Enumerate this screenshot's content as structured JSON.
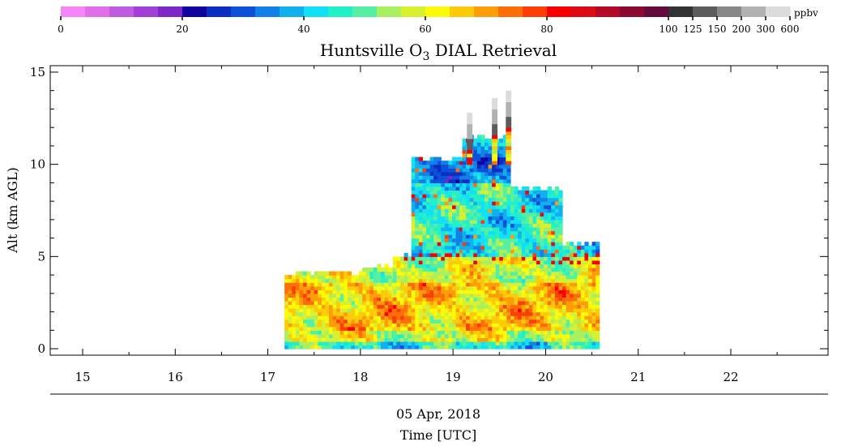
{
  "chart_data": {
    "type": "heatmap",
    "title": "Huntsville O",
    "title_sub": "3",
    "title_rest": " DIAL Retrieval",
    "ylabel": "Alt (km AGL)",
    "xlabel": "Time [UTC]",
    "date_label": "05 Apr, 2018",
    "x_unit": "hour UTC",
    "xlim": [
      14.65,
      23.05
    ],
    "ylim": [
      -0.35,
      15.35
    ],
    "x_ticks": [
      15,
      16,
      17,
      18,
      19,
      20,
      21,
      22
    ],
    "y_ticks": [
      0,
      5,
      10,
      15
    ],
    "grid": false,
    "colorbar": {
      "unit_label": "ppbv",
      "colors": [
        "#f785f7",
        "#e06ee8",
        "#c05adf",
        "#a13fd6",
        "#7d27c8",
        "#0f04a0",
        "#0b2ec3",
        "#0d50da",
        "#1280e6",
        "#10b0ef",
        "#14e0f5",
        "#24f0c8",
        "#55f0a3",
        "#a8f060",
        "#d8f030",
        "#fbfb09",
        "#fdcb09",
        "#fd9e09",
        "#fc6e09",
        "#fb3e06",
        "#f60000",
        "#dc0a14",
        "#b40a28",
        "#8c0a32",
        "#640a3c",
        "#333333",
        "#5c5c5c",
        "#878787",
        "#b2b2b2",
        "#dcdcdc"
      ],
      "ticks": [
        {
          "label": "0",
          "index": 0
        },
        {
          "label": "20",
          "index": 5
        },
        {
          "label": "40",
          "index": 10
        },
        {
          "label": "60",
          "index": 15
        },
        {
          "label": "80",
          "index": 20
        },
        {
          "label": "100",
          "index": 25
        },
        {
          "label": "125",
          "index": 26
        },
        {
          "label": "150",
          "index": 27
        },
        {
          "label": "200",
          "index": 28
        },
        {
          "label": "300",
          "index": 29
        },
        {
          "label": "600",
          "index": 30
        }
      ]
    },
    "profile_segments": [
      {
        "t_start": 17.18,
        "t_end": 18.02,
        "top_km": 4.05
      },
      {
        "t_start": 18.02,
        "t_end": 18.35,
        "top_km": 4.3
      },
      {
        "t_start": 18.35,
        "t_end": 18.55,
        "top_km": 5.0
      },
      {
        "t_start": 18.55,
        "t_end": 19.1,
        "top_km": 10.2
      },
      {
        "t_start": 19.1,
        "t_end": 19.62,
        "top_km": 11.3
      },
      {
        "t_start": 19.62,
        "t_end": 20.18,
        "top_km": 8.6
      },
      {
        "t_start": 20.18,
        "t_end": 20.55,
        "top_km": 5.6
      }
    ],
    "plumes": [
      {
        "t": 19.15,
        "top_km": 12.6
      },
      {
        "t": 19.42,
        "top_km": 13.4
      },
      {
        "t": 19.57,
        "top_km": 13.8
      }
    ],
    "ozone_by_altitude": [
      {
        "alt_range_km": [
          0,
          0.3
        ],
        "ppbv": 45
      },
      {
        "alt_range_km": [
          0.3,
          1.0
        ],
        "ppbv": 58
      },
      {
        "alt_range_km": [
          1.0,
          3.5
        ],
        "ppbv": 66
      },
      {
        "alt_range_km": [
          3.5,
          5.0
        ],
        "ppbv": 58
      },
      {
        "alt_range_km": [
          5.0,
          9.0
        ],
        "ppbv": 45
      },
      {
        "alt_range_km": [
          9.0,
          10.3
        ],
        "ppbv": 35
      }
    ]
  }
}
